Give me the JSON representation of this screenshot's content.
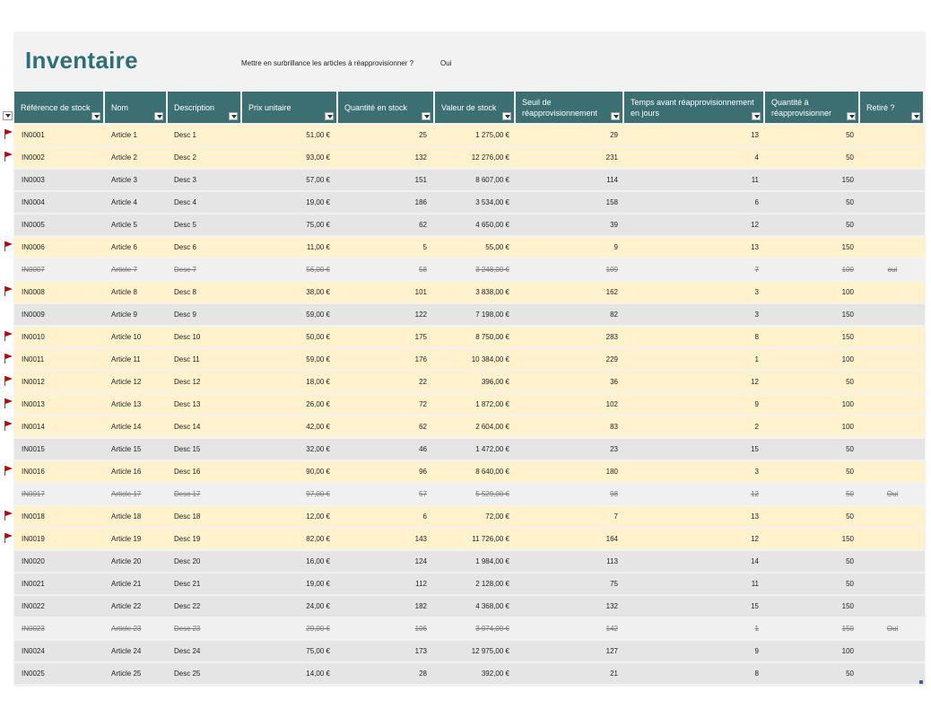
{
  "title": "Inventaire",
  "highlight": {
    "label": "Mettre en surbrillance les articles à réapprovisionner ?",
    "value": "Oui"
  },
  "columns": [
    {
      "key": "ref",
      "label": "Référence de stock"
    },
    {
      "key": "nom",
      "label": "Nom"
    },
    {
      "key": "desc",
      "label": "Description"
    },
    {
      "key": "prix",
      "label": "Prix unitaire"
    },
    {
      "key": "qte",
      "label": "Quantité en stock"
    },
    {
      "key": "valeur",
      "label": "Valeur de stock"
    },
    {
      "key": "seuil",
      "label": "Seuil de réapprovisionnement"
    },
    {
      "key": "temps",
      "label": "Temps avant réapprovisionnement en jours"
    },
    {
      "key": "qreap",
      "label": "Quantité à réapprovisionner"
    },
    {
      "key": "retire",
      "label": "Retiré ?"
    }
  ],
  "rows": [
    {
      "ref": "IN0001",
      "nom": "Article 1",
      "desc": "Desc 1",
      "prix": "51,00 €",
      "qte": "25",
      "valeur": "1 275,00 €",
      "seuil": "29",
      "temps": "13",
      "qreap": "50",
      "retire": "",
      "flag": true,
      "style": "yellow"
    },
    {
      "ref": "IN0002",
      "nom": "Article 2",
      "desc": "Desc 2",
      "prix": "93,00 €",
      "qte": "132",
      "valeur": "12 276,00 €",
      "seuil": "231",
      "temps": "4",
      "qreap": "50",
      "retire": "",
      "flag": true,
      "style": "yellow"
    },
    {
      "ref": "IN0003",
      "nom": "Article 3",
      "desc": "Desc 3",
      "prix": "57,00 €",
      "qte": "151",
      "valeur": "8 607,00 €",
      "seuil": "114",
      "temps": "11",
      "qreap": "150",
      "retire": "",
      "flag": false,
      "style": "grey"
    },
    {
      "ref": "IN0004",
      "nom": "Article 4",
      "desc": "Desc 4",
      "prix": "19,00 €",
      "qte": "186",
      "valeur": "3 534,00 €",
      "seuil": "158",
      "temps": "6",
      "qreap": "50",
      "retire": "",
      "flag": false,
      "style": "grey"
    },
    {
      "ref": "IN0005",
      "nom": "Article 5",
      "desc": "Desc 5",
      "prix": "75,00 €",
      "qte": "62",
      "valeur": "4 650,00 €",
      "seuil": "39",
      "temps": "12",
      "qreap": "50",
      "retire": "",
      "flag": false,
      "style": "grey"
    },
    {
      "ref": "IN0006",
      "nom": "Article 6",
      "desc": "Desc 6",
      "prix": "11,00 €",
      "qte": "5",
      "valeur": "55,00 €",
      "seuil": "9",
      "temps": "13",
      "qreap": "150",
      "retire": "",
      "flag": true,
      "style": "yellow"
    },
    {
      "ref": "IN0007",
      "nom": "Article 7",
      "desc": "Desc 7",
      "prix": "56,00 €",
      "qte": "58",
      "valeur": "3 248,00 €",
      "seuil": "109",
      "temps": "7",
      "qreap": "100",
      "retire": "oui",
      "flag": false,
      "style": "retired"
    },
    {
      "ref": "IN0008",
      "nom": "Article 8",
      "desc": "Desc 8",
      "prix": "38,00 €",
      "qte": "101",
      "valeur": "3 838,00 €",
      "seuil": "162",
      "temps": "3",
      "qreap": "100",
      "retire": "",
      "flag": true,
      "style": "yellow"
    },
    {
      "ref": "IN0009",
      "nom": "Article 9",
      "desc": "Desc 9",
      "prix": "59,00 €",
      "qte": "122",
      "valeur": "7 198,00 €",
      "seuil": "82",
      "temps": "3",
      "qreap": "150",
      "retire": "",
      "flag": false,
      "style": "grey"
    },
    {
      "ref": "IN0010",
      "nom": "Article 10",
      "desc": "Desc 10",
      "prix": "50,00 €",
      "qte": "175",
      "valeur": "8 750,00 €",
      "seuil": "283",
      "temps": "8",
      "qreap": "150",
      "retire": "",
      "flag": true,
      "style": "yellow"
    },
    {
      "ref": "IN0011",
      "nom": "Article 11",
      "desc": "Desc 11",
      "prix": "59,00 €",
      "qte": "176",
      "valeur": "10 384,00 €",
      "seuil": "229",
      "temps": "1",
      "qreap": "100",
      "retire": "",
      "flag": true,
      "style": "yellow"
    },
    {
      "ref": "IN0012",
      "nom": "Article 12",
      "desc": "Desc 12",
      "prix": "18,00 €",
      "qte": "22",
      "valeur": "396,00 €",
      "seuil": "36",
      "temps": "12",
      "qreap": "50",
      "retire": "",
      "flag": true,
      "style": "yellow"
    },
    {
      "ref": "IN0013",
      "nom": "Article 13",
      "desc": "Desc 13",
      "prix": "26,00 €",
      "qte": "72",
      "valeur": "1 872,00 €",
      "seuil": "102",
      "temps": "9",
      "qreap": "100",
      "retire": "",
      "flag": true,
      "style": "yellow"
    },
    {
      "ref": "IN0014",
      "nom": "Article 14",
      "desc": "Desc 14",
      "prix": "42,00 €",
      "qte": "62",
      "valeur": "2 604,00 €",
      "seuil": "83",
      "temps": "2",
      "qreap": "100",
      "retire": "",
      "flag": true,
      "style": "yellow"
    },
    {
      "ref": "IN0015",
      "nom": "Article 15",
      "desc": "Desc 15",
      "prix": "32,00 €",
      "qte": "46",
      "valeur": "1 472,00 €",
      "seuil": "23",
      "temps": "15",
      "qreap": "50",
      "retire": "",
      "flag": false,
      "style": "grey"
    },
    {
      "ref": "IN0016",
      "nom": "Article 16",
      "desc": "Desc 16",
      "prix": "90,00 €",
      "qte": "96",
      "valeur": "8 640,00 €",
      "seuil": "180",
      "temps": "3",
      "qreap": "50",
      "retire": "",
      "flag": true,
      "style": "yellow"
    },
    {
      "ref": "IN0017",
      "nom": "Article 17",
      "desc": "Desc 17",
      "prix": "97,00 €",
      "qte": "57",
      "valeur": "5 529,00 €",
      "seuil": "98",
      "temps": "12",
      "qreap": "50",
      "retire": "Oui",
      "flag": false,
      "style": "retired"
    },
    {
      "ref": "IN0018",
      "nom": "Article 18",
      "desc": "Desc 18",
      "prix": "12,00 €",
      "qte": "6",
      "valeur": "72,00 €",
      "seuil": "7",
      "temps": "13",
      "qreap": "50",
      "retire": "",
      "flag": true,
      "style": "yellow"
    },
    {
      "ref": "IN0019",
      "nom": "Article 19",
      "desc": "Desc 19",
      "prix": "82,00 €",
      "qte": "143",
      "valeur": "11 726,00 €",
      "seuil": "164",
      "temps": "12",
      "qreap": "150",
      "retire": "",
      "flag": true,
      "style": "yellow"
    },
    {
      "ref": "IN0020",
      "nom": "Article 20",
      "desc": "Desc 20",
      "prix": "16,00 €",
      "qte": "124",
      "valeur": "1 984,00 €",
      "seuil": "113",
      "temps": "14",
      "qreap": "50",
      "retire": "",
      "flag": false,
      "style": "grey"
    },
    {
      "ref": "IN0021",
      "nom": "Article 21",
      "desc": "Desc 21",
      "prix": "19,00 €",
      "qte": "112",
      "valeur": "2 128,00 €",
      "seuil": "75",
      "temps": "11",
      "qreap": "50",
      "retire": "",
      "flag": false,
      "style": "grey"
    },
    {
      "ref": "IN0022",
      "nom": "Article 22",
      "desc": "Desc 22",
      "prix": "24,00 €",
      "qte": "182",
      "valeur": "4 368,00 €",
      "seuil": "132",
      "temps": "15",
      "qreap": "150",
      "retire": "",
      "flag": false,
      "style": "grey"
    },
    {
      "ref": "IN0023",
      "nom": "Article 23",
      "desc": "Desc 23",
      "prix": "29,00 €",
      "qte": "106",
      "valeur": "3 074,00 €",
      "seuil": "142",
      "temps": "1",
      "qreap": "150",
      "retire": "Oui",
      "flag": false,
      "style": "retired"
    },
    {
      "ref": "IN0024",
      "nom": "Article 24",
      "desc": "Desc 24",
      "prix": "75,00 €",
      "qte": "173",
      "valeur": "12 975,00 €",
      "seuil": "127",
      "temps": "9",
      "qreap": "100",
      "retire": "",
      "flag": false,
      "style": "grey"
    },
    {
      "ref": "IN0025",
      "nom": "Article 25",
      "desc": "Desc 25",
      "prix": "14,00 €",
      "qte": "28",
      "valeur": "392,00 €",
      "seuil": "21",
      "temps": "8",
      "qreap": "50",
      "retire": "",
      "flag": false,
      "style": "grey"
    }
  ],
  "colors": {
    "header": "#3c6f72",
    "title": "#2e6f76",
    "yellow_row": "#fff2cc",
    "grey_row": "#e5e5e5",
    "flag": "#c00000"
  },
  "icons": {
    "flag": "red-flag-icon",
    "filter": "filter-dropdown-icon"
  }
}
